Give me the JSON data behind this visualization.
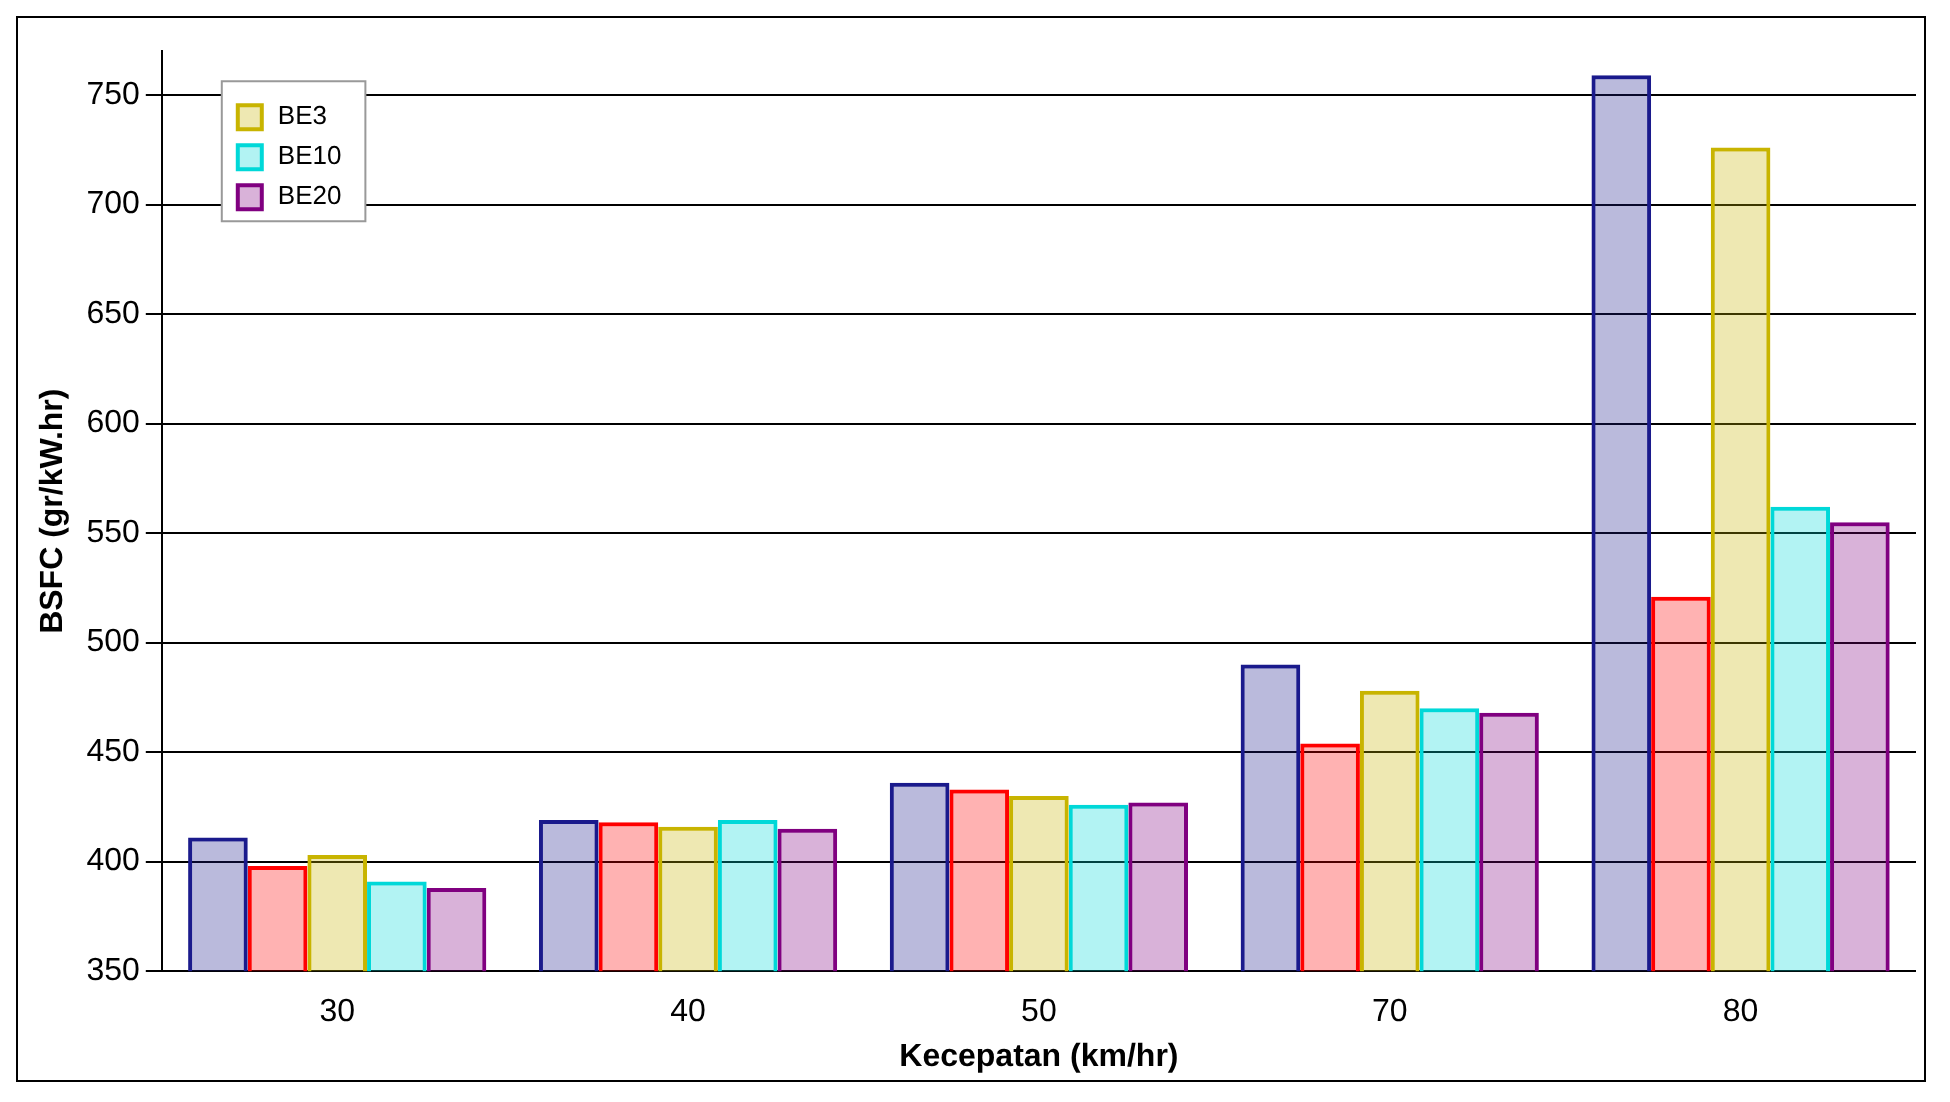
{
  "chart_data": {
    "type": "bar",
    "xlabel": "Kecepatan (km/hr)",
    "ylabel": "BSFC (gr/kW.hr)",
    "categories": [
      "30",
      "40",
      "50",
      "70",
      "80"
    ],
    "series": [
      {
        "color": "#1a1a8c",
        "values": [
          411,
          419,
          436,
          490,
          759
        ]
      },
      {
        "color": "#ff0000",
        "values": [
          398,
          418,
          433,
          454,
          521
        ]
      },
      {
        "name": "BE3",
        "color": "#c8b400",
        "values": [
          403,
          416,
          430,
          478,
          726
        ]
      },
      {
        "name": "BE10",
        "color": "#00d8d8",
        "values": [
          391,
          419,
          426,
          470,
          562
        ]
      },
      {
        "name": "BE20",
        "color": "#800080",
        "values": [
          388,
          415,
          427,
          468,
          555
        ]
      }
    ],
    "ylim": [
      350,
      770
    ],
    "yticks": [
      350,
      400,
      450,
      500,
      550,
      600,
      650,
      700,
      750
    ],
    "grid": "y",
    "legend": "top left"
  }
}
